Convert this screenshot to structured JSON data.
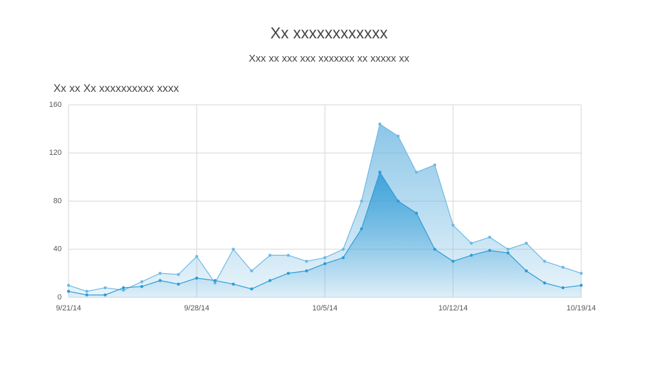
{
  "chart_data": {
    "type": "area",
    "title": "Xx xxxxxxxxxxxx",
    "subtitle": "Xxx xx xxx xxx xxxxxxx xx xxxxx xx",
    "chart_title": "Xx xx Xx xxxxxxxxxx xxxx",
    "x": [
      "2014-09-21",
      "2014-09-22",
      "2014-09-23",
      "2014-09-24",
      "2014-09-25",
      "2014-09-26",
      "2014-09-27",
      "2014-09-28",
      "2014-09-29",
      "2014-09-30",
      "2014-10-01",
      "2014-10-02",
      "2014-10-03",
      "2014-10-04",
      "2014-10-05",
      "2014-10-06",
      "2014-10-07",
      "2014-10-08",
      "2014-10-09",
      "2014-10-10",
      "2014-10-11",
      "2014-10-12",
      "2014-10-13",
      "2014-10-14",
      "2014-10-15",
      "2014-10-16",
      "2014-10-17",
      "2014-10-18",
      "2014-10-19"
    ],
    "series": [
      {
        "color": "#6fb8e2",
        "values": [
          10,
          5,
          8,
          6,
          13,
          20,
          19,
          34,
          12,
          40,
          22,
          35,
          35,
          30,
          33,
          40,
          80,
          144,
          134,
          104,
          110,
          60,
          45,
          50,
          40,
          45,
          30,
          25,
          20
        ]
      },
      {
        "color": "#2e9bd6",
        "values": [
          5,
          2,
          2,
          8,
          9,
          14,
          11,
          16,
          14,
          11,
          7,
          14,
          20,
          22,
          28,
          33,
          57,
          104,
          80,
          70,
          40,
          30,
          35,
          39,
          37,
          22,
          12,
          8,
          10
        ]
      }
    ],
    "xlim": [
      "2014-09-21",
      "2014-10-19"
    ],
    "xticks": [
      {
        "value": "2014-09-21",
        "label": "9/21/14"
      },
      {
        "value": "2014-09-28",
        "label": "9/28/14"
      },
      {
        "value": "2014-10-05",
        "label": "10/5/14"
      },
      {
        "value": "2014-10-12",
        "label": "10/12/14"
      },
      {
        "value": "2014-10-19",
        "label": "10/19/14"
      }
    ],
    "ylim": [
      0,
      160
    ],
    "yticks": [
      0,
      40,
      80,
      120,
      160
    ],
    "grid": true
  }
}
